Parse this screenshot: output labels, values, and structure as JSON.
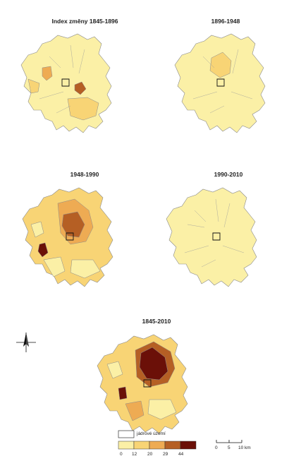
{
  "panels": [
    {
      "title": "Index změny 1845-1896"
    },
    {
      "title": "1896-1948"
    },
    {
      "title": "1948-1990"
    },
    {
      "title": "1990-2010"
    },
    {
      "title": "1845-2010"
    }
  ],
  "legend": {
    "core_label": "jádrové území",
    "class_breaks": [
      "0",
      "12",
      "20",
      "29",
      "44"
    ],
    "colors": [
      "#fbf0a6",
      "#f8d475",
      "#eeab53",
      "#b55f24",
      "#6b1008"
    ]
  },
  "scale_bar": {
    "labels": [
      "0",
      "5",
      "10 km"
    ]
  },
  "north_arrow": "north-arrow-icon"
}
